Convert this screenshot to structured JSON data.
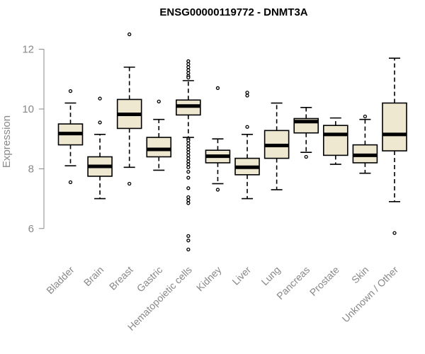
{
  "chart_data": {
    "type": "boxplot",
    "title": "ENSG00000119772 - DNMT3A",
    "xlabel": "",
    "ylabel": "Expression",
    "ylim": [
      5.0,
      12.7
    ],
    "yticks": [
      6,
      8,
      10,
      12
    ],
    "grid": false,
    "colors": {
      "box_fill": "#efe8d0",
      "stroke": "#000000",
      "axis": "#888888"
    },
    "categories": [
      "Bladder",
      "Brain",
      "Breast",
      "Gastric",
      "Hematopoietic cells",
      "Kidney",
      "Liver",
      "Lung",
      "Pancreas",
      "Prostate",
      "Skin",
      "Unknown / Other"
    ],
    "boxes": [
      {
        "name": "Bladder",
        "whisker_low": 8.1,
        "q1": 8.8,
        "median": 9.18,
        "q3": 9.5,
        "whisker_high": 10.2,
        "outliers": [
          10.6,
          7.55
        ]
      },
      {
        "name": "Brain",
        "whisker_low": 7.0,
        "q1": 7.75,
        "median": 8.08,
        "q3": 8.4,
        "whisker_high": 9.15,
        "outliers": [
          10.35,
          9.55
        ]
      },
      {
        "name": "Breast",
        "whisker_low": 8.05,
        "q1": 9.35,
        "median": 9.82,
        "q3": 10.32,
        "whisker_high": 11.4,
        "outliers": [
          12.5,
          7.5
        ]
      },
      {
        "name": "Gastric",
        "whisker_low": 7.95,
        "q1": 8.4,
        "median": 8.65,
        "q3": 9.05,
        "whisker_high": 9.65,
        "outliers": [
          10.25
        ]
      },
      {
        "name": "Hematopoietic cells",
        "whisker_low": 9.05,
        "q1": 9.8,
        "median": 10.1,
        "q3": 10.3,
        "whisker_high": 10.95,
        "outliers": [
          11.6,
          11.5,
          11.4,
          11.3,
          11.2,
          11.1,
          11.05,
          9.0,
          8.95,
          8.85,
          8.75,
          8.65,
          8.55,
          8.45,
          8.35,
          8.25,
          8.15,
          8.05,
          7.9,
          7.7,
          7.35,
          7.05,
          6.95,
          6.85,
          5.75,
          5.6,
          5.3
        ]
      },
      {
        "name": "Kidney",
        "whisker_low": 7.5,
        "q1": 8.2,
        "median": 8.42,
        "q3": 8.62,
        "whisker_high": 9.0,
        "outliers": [
          10.7,
          7.3
        ]
      },
      {
        "name": "Liver",
        "whisker_low": 7.0,
        "q1": 7.8,
        "median": 8.05,
        "q3": 8.35,
        "whisker_high": 9.15,
        "outliers": [
          10.55,
          10.45,
          9.4
        ]
      },
      {
        "name": "Lung",
        "whisker_low": 7.3,
        "q1": 8.35,
        "median": 8.78,
        "q3": 9.28,
        "whisker_high": 10.2,
        "outliers": []
      },
      {
        "name": "Pancreas",
        "whisker_low": 8.55,
        "q1": 9.2,
        "median": 9.58,
        "q3": 9.68,
        "whisker_high": 10.05,
        "outliers": [
          8.4
        ]
      },
      {
        "name": "Prostate",
        "whisker_low": 8.15,
        "q1": 8.45,
        "median": 9.15,
        "q3": 9.45,
        "whisker_high": 9.7,
        "outliers": []
      },
      {
        "name": "Skin",
        "whisker_low": 7.85,
        "q1": 8.2,
        "median": 8.45,
        "q3": 8.8,
        "whisker_high": 9.65,
        "outliers": [
          9.75
        ]
      },
      {
        "name": "Unknown / Other",
        "whisker_low": 6.9,
        "q1": 8.6,
        "median": 9.15,
        "q3": 10.2,
        "whisker_high": 11.7,
        "outliers": [
          5.85
        ]
      }
    ]
  }
}
